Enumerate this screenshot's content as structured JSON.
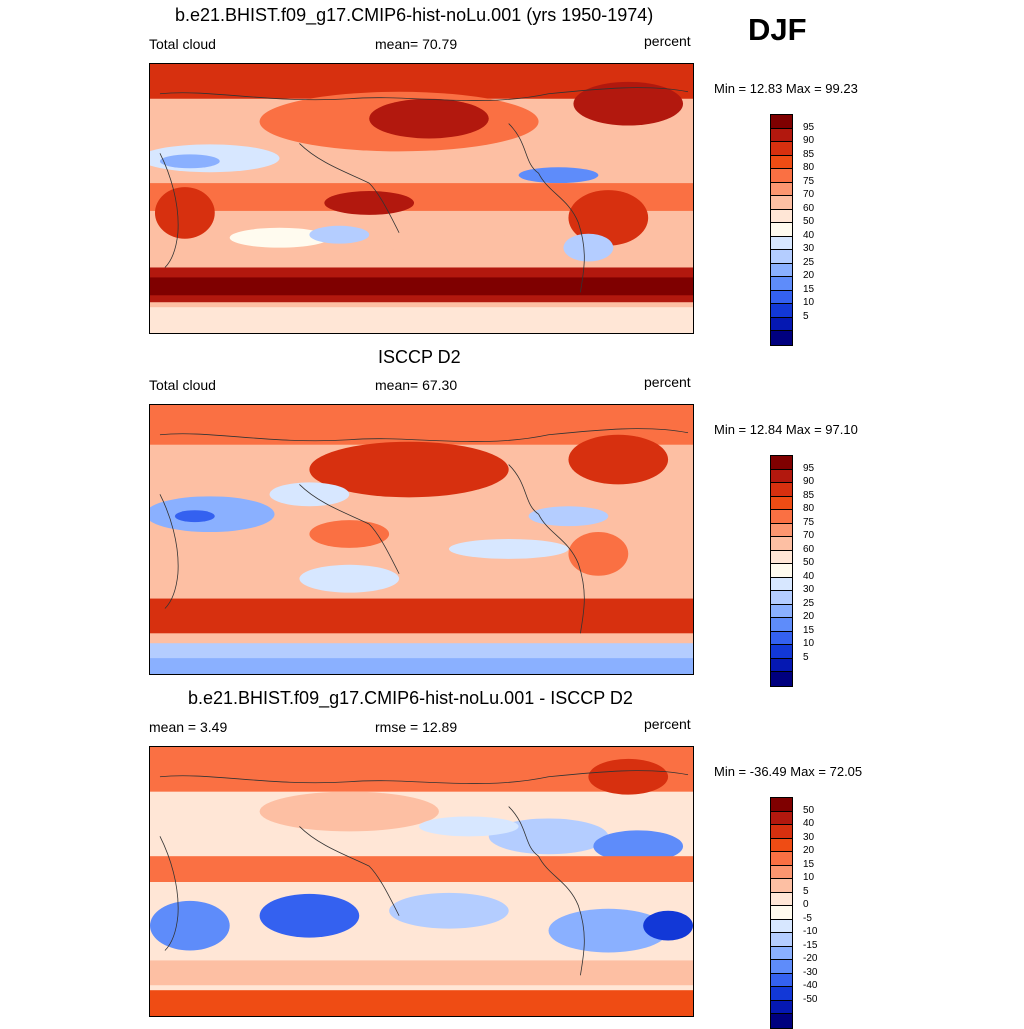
{
  "season": "DJF",
  "palettes": {
    "abs": [
      "#7f0000",
      "#b2180e",
      "#d7300f",
      "#ef4c14",
      "#fa7043",
      "#fc9670",
      "#fdbfa3",
      "#ffe6d6",
      "#fffbef",
      "#d7e7ff",
      "#b4cdff",
      "#8ab0ff",
      "#5e8cfa",
      "#3461f0",
      "#1238d7",
      "#0518b2",
      "#00007f"
    ],
    "diff": [
      "#7f0000",
      "#b2180e",
      "#d7300f",
      "#ef4c14",
      "#fa7043",
      "#fc9670",
      "#fdbfa3",
      "#ffe6d6",
      "#fffbef",
      "#d7e7ff",
      "#b4cdff",
      "#8ab0ff",
      "#5e8cfa",
      "#3461f0",
      "#1238d7",
      "#0518b2",
      "#00007f"
    ]
  },
  "panels": [
    {
      "title": "b.e21.BHIST.f09_g17.CMIP6-hist-noLu.001 (yrs 1950-1974)",
      "left_label": "Total cloud",
      "center_label": "mean=  70.79",
      "right_label": "percent",
      "minmax": "Min =  12.83 Max =  99.23",
      "ticks": [
        "95",
        "90",
        "85",
        "80",
        "75",
        "70",
        "60",
        "50",
        "40",
        "30",
        "25",
        "20",
        "15",
        "10",
        "5"
      ],
      "palette": "abs"
    },
    {
      "title": "ISCCP D2",
      "left_label": "Total cloud",
      "center_label": "mean=  67.30",
      "right_label": "percent",
      "minmax": "Min =  12.84 Max =  97.10",
      "ticks": [
        "95",
        "90",
        "85",
        "80",
        "75",
        "70",
        "60",
        "50",
        "40",
        "30",
        "25",
        "20",
        "15",
        "10",
        "5"
      ],
      "palette": "abs"
    },
    {
      "title": "b.e21.BHIST.f09_g17.CMIP6-hist-noLu.001 - ISCCP D2",
      "left_label": "mean =   3.49",
      "center_label": "rmse =  12.89",
      "right_label": "percent",
      "minmax": "Min = -36.49 Max =  72.05",
      "ticks": [
        "50",
        "40",
        "30",
        "20",
        "15",
        "10",
        "5",
        "0",
        "-5",
        "-10",
        "-15",
        "-20",
        "-30",
        "-40",
        "-50"
      ],
      "palette": "diff"
    }
  ]
}
